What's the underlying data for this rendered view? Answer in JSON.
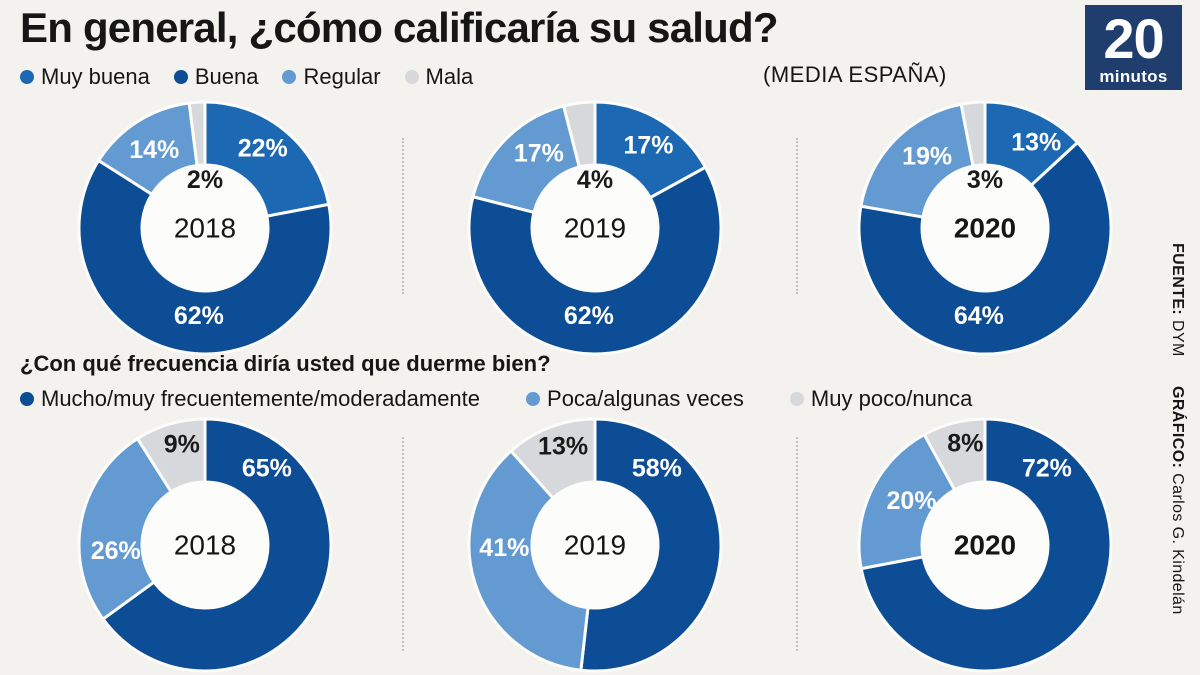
{
  "page": {
    "background": "#f3f2ef"
  },
  "header": {
    "title": "En general, ¿cómo calificaría su salud?",
    "subtitle": "(MEDIA ESPAÑA)",
    "logo": {
      "number": "20",
      "word": "minutos",
      "bg_color": "#1f3e6d",
      "text_color": "#ffffff"
    }
  },
  "credits": {
    "source_label": "FUENTE:",
    "source_value": " DYM",
    "graphic_label": "GRÁFICO:",
    "graphic_value": " Carlos G. Kindelán"
  },
  "colors": {
    "dark_blue": "#0c4d95",
    "medium_blue": "#1d68b2",
    "light_blue": "#639ad2",
    "gray": "#d6d8db",
    "hole": "#fcfcfa",
    "divider": "#bfc2c6"
  },
  "chart_data": [
    {
      "type": "pie",
      "subtype": "donut-row",
      "question": "En general, ¿cómo calificaría su salud?",
      "note": "(MEDIA ESPAÑA)",
      "legend_position": "top-left",
      "legend": [
        {
          "label": "Muy buena",
          "color": "#1d68b2"
        },
        {
          "label": "Buena",
          "color": "#0c4d95"
        },
        {
          "label": "Regular",
          "color": "#639ad2"
        },
        {
          "label": "Mala",
          "color": "#d6d8db"
        }
      ],
      "charts": [
        {
          "year": "2018",
          "year_bold": false,
          "segments": [
            {
              "label": "Muy buena",
              "value": 22,
              "color": "#1d68b2",
              "text": "#ffffff",
              "la": 36,
              "lr": 0.78
            },
            {
              "label": "Buena",
              "value": 62,
              "color": "#0c4d95",
              "text": "#ffffff",
              "la": 184,
              "lr": 0.7
            },
            {
              "label": "Regular",
              "value": 14,
              "color": "#639ad2",
              "text": "#ffffff",
              "la": 327,
              "lr": 0.74
            },
            {
              "label": "Mala",
              "value": 2,
              "color": "#d6d8db",
              "text": "#1a1a1a",
              "hole": true
            }
          ]
        },
        {
          "year": "2019",
          "year_bold": false,
          "segments": [
            {
              "label": "Muy buena",
              "value": 17,
              "color": "#1d68b2",
              "text": "#ffffff",
              "la": 33,
              "lr": 0.78
            },
            {
              "label": "Buena",
              "value": 62,
              "color": "#0c4d95",
              "text": "#ffffff",
              "la": 184,
              "lr": 0.7
            },
            {
              "label": "Regular",
              "value": 17,
              "color": "#639ad2",
              "text": "#ffffff",
              "la": 323,
              "lr": 0.74
            },
            {
              "label": "Mala",
              "value": 4,
              "color": "#d6d8db",
              "text": "#1a1a1a",
              "hole": true
            }
          ]
        },
        {
          "year": "2020",
          "year_bold": true,
          "segments": [
            {
              "label": "Muy buena",
              "value": 13,
              "color": "#1d68b2",
              "text": "#ffffff",
              "la": 31,
              "lr": 0.79
            },
            {
              "label": "Buena",
              "value": 64,
              "color": "#0c4d95",
              "text": "#ffffff",
              "la": 184,
              "lr": 0.7
            },
            {
              "label": "Regular",
              "value": 19,
              "color": "#639ad2",
              "text": "#ffffff",
              "la": 321,
              "lr": 0.73
            },
            {
              "label": "Mala",
              "value": 3,
              "color": "#d6d8db",
              "text": "#1a1a1a",
              "hole": true
            }
          ]
        }
      ]
    },
    {
      "type": "pie",
      "subtype": "donut-row",
      "question": "¿Con qué frecuencia diría usted que duerme bien?",
      "legend_position": "above-row",
      "legend": [
        {
          "label": "Mucho/muy frecuentemente/moderadamente",
          "color": "#0c4d95"
        },
        {
          "label": "Poca/algunas veces",
          "color": "#639ad2"
        },
        {
          "label": "Muy poco/nunca",
          "color": "#d6d8db"
        }
      ],
      "charts": [
        {
          "year": "2018",
          "year_bold": false,
          "segments": [
            {
              "label": "Mucho/muy frecuentemente/moderadamente",
              "value": 65,
              "color": "#0c4d95",
              "text": "#ffffff",
              "la": 39,
              "lr": 0.78
            },
            {
              "label": "Poca/algunas veces",
              "value": 26,
              "color": "#639ad2",
              "text": "#ffffff",
              "la": 266,
              "lr": 0.71
            },
            {
              "label": "Muy poco/nunca",
              "value": 9,
              "color": "#d6d8db",
              "text": "#1a1a1a",
              "la": 347,
              "lr": 0.82
            }
          ]
        },
        {
          "year": "2019",
          "year_bold": false,
          "segments": [
            {
              "label": "Mucho/muy frecuentemente/moderadamente",
              "value": 58,
              "color": "#0c4d95",
              "text": "#ffffff",
              "la": 39,
              "lr": 0.78
            },
            {
              "label": "Poca/algunas veces",
              "value": 41,
              "color": "#639ad2",
              "text": "#ffffff",
              "la": 268,
              "lr": 0.72
            },
            {
              "label": "Muy poco/nunca",
              "value": 13,
              "color": "#d6d8db",
              "text": "#1a1a1a",
              "la": 342,
              "lr": 0.82
            }
          ]
        },
        {
          "year": "2020",
          "year_bold": true,
          "segments": [
            {
              "label": "Mucho/muy frecuentemente/moderadamente",
              "value": 72,
              "color": "#0c4d95",
              "text": "#ffffff",
              "la": 39,
              "lr": 0.78
            },
            {
              "label": "Poca/algunas veces",
              "value": 20,
              "color": "#639ad2",
              "text": "#ffffff",
              "la": 301,
              "lr": 0.68
            },
            {
              "label": "Muy poco/nunca",
              "value": 8,
              "color": "#d6d8db",
              "text": "#1a1a1a",
              "la": 349,
              "lr": 0.82
            }
          ]
        }
      ]
    }
  ]
}
